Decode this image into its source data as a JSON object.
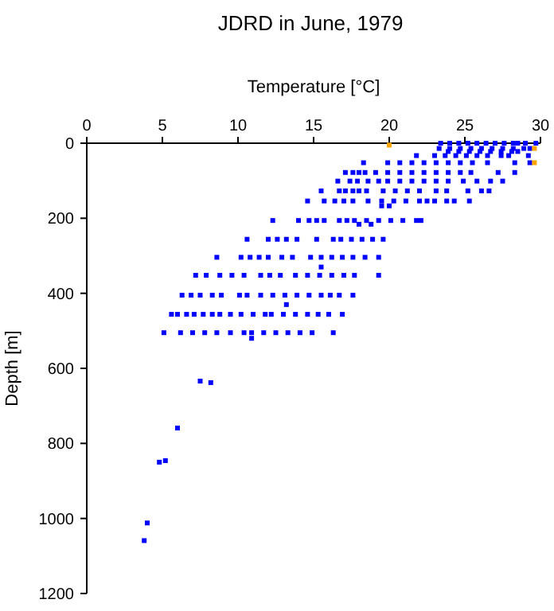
{
  "chart_data": {
    "type": "scatter",
    "title": "JDRD in June, 1979",
    "xlabel": "Temperature [°C]",
    "ylabel": "Depth [m]",
    "xlim": [
      0,
      30
    ],
    "xticks": [
      0,
      5,
      10,
      15,
      20,
      25,
      30
    ],
    "ylim": [
      1200,
      0
    ],
    "yticks": [
      0,
      200,
      400,
      600,
      800,
      1000,
      1200
    ],
    "grid": false,
    "marker": "square",
    "series": [
      {
        "color": "#0000ff",
        "x": [
          23.4,
          24,
          24.6,
          25.2,
          25.8,
          26.4,
          27,
          27.6,
          28.2,
          28.5,
          29.0,
          29.7,
          23.3,
          24,
          24.7,
          25.4,
          26.1,
          26.8,
          27.5,
          28.2,
          28.9,
          29.3,
          23.9,
          24.6,
          25.3,
          26,
          26.7,
          27.4,
          28.1,
          28.5,
          21.8,
          23,
          23.7,
          24.4,
          25.1,
          25.8,
          26.5,
          27.4,
          27.9,
          29.2,
          18.3,
          19.9,
          20.7,
          21.5,
          22.3,
          23.1,
          23.9,
          24.7,
          25.5,
          26.5,
          28.3,
          29.3,
          17.1,
          17.6,
          18.0,
          18.4,
          19.1,
          19.9,
          20.7,
          21.5,
          22.3,
          23.1,
          23.9,
          24.7,
          25.4,
          27.2,
          28.3,
          16.6,
          17.4,
          17.9,
          18.6,
          19.3,
          19.9,
          20.7,
          21.5,
          22.3,
          23.1,
          23.9,
          24.9,
          25.8,
          26.7,
          27.5,
          15.5,
          16.7,
          17.1,
          17.6,
          18.0,
          18.5,
          19.6,
          20.4,
          21.2,
          22.0,
          23.1,
          23.8,
          25.2,
          26.1,
          26.6,
          14.6,
          15.7,
          16.4,
          17.0,
          17.6,
          18.6,
          19.5,
          20.3,
          21.1,
          22.0,
          22.5,
          23.0,
          23.8,
          24.3,
          25.3,
          19.5,
          20.0,
          12.3,
          14.0,
          14.7,
          15.2,
          15.7,
          16.7,
          17.2,
          17.7,
          18.5,
          19.3,
          20.1,
          20.9,
          21.8,
          22.1,
          18.0,
          18.8,
          10.6,
          12.0,
          12.6,
          13.2,
          13.9,
          15.2,
          16.3,
          16.8,
          17.5,
          18.2,
          18.9,
          19.6,
          8.6,
          10.2,
          10.8,
          11.4,
          12.0,
          12.9,
          13.6,
          14.8,
          15.5,
          16.2,
          16.9,
          17.6,
          18.4,
          19.3,
          15.5,
          7.2,
          7.9,
          8.8,
          9.6,
          10.4,
          11.5,
          12.1,
          12.8,
          13.8,
          14.6,
          15.4,
          16.2,
          17.0,
          17.7,
          19.3,
          6.3,
          6.9,
          7.5,
          8.3,
          8.9,
          10.1,
          10.6,
          11.5,
          12.3,
          13.1,
          13.9,
          14.7,
          15.5,
          16.1,
          16.7,
          17.6,
          13.2,
          5.6,
          6.0,
          6.6,
          7.1,
          7.7,
          8.3,
          8.8,
          9.5,
          10.2,
          11.0,
          11.8,
          12.2,
          13.0,
          13.8,
          14.6,
          15.3,
          16.0,
          16.9,
          5.1,
          6.2,
          7.0,
          7.8,
          8.6,
          9.5,
          10.4,
          10.9,
          11.7,
          12.5,
          13.3,
          14.1,
          14.9,
          16.3,
          10.9,
          7.5,
          8.2,
          6.0,
          4.8,
          5.2,
          4.0,
          3.8
        ],
        "values": [
          0,
          0,
          0,
          0,
          0,
          0,
          0,
          0,
          0,
          0,
          0,
          0,
          14,
          14,
          14,
          14,
          14,
          14,
          14,
          14,
          14,
          14,
          22,
          22,
          22,
          22,
          22,
          22,
          22,
          22,
          33,
          33,
          33,
          33,
          33,
          33,
          33,
          33,
          33,
          33,
          52,
          52,
          52,
          52,
          52,
          52,
          52,
          52,
          52,
          52,
          52,
          52,
          78,
          78,
          78,
          78,
          78,
          78,
          78,
          78,
          78,
          78,
          78,
          78,
          78,
          78,
          78,
          101,
          101,
          101,
          101,
          101,
          101,
          101,
          101,
          101,
          101,
          101,
          101,
          101,
          101,
          101,
          127,
          127,
          127,
          127,
          127,
          127,
          127,
          127,
          127,
          127,
          127,
          127,
          127,
          127,
          127,
          154,
          154,
          154,
          154,
          154,
          154,
          154,
          154,
          154,
          154,
          154,
          154,
          154,
          154,
          154,
          167,
          167,
          206,
          206,
          206,
          206,
          206,
          206,
          206,
          206,
          206,
          206,
          206,
          206,
          206,
          206,
          216,
          216,
          256,
          256,
          256,
          256,
          256,
          256,
          256,
          256,
          256,
          256,
          256,
          256,
          304,
          304,
          304,
          304,
          304,
          304,
          304,
          304,
          304,
          304,
          304,
          304,
          304,
          304,
          330,
          352,
          352,
          352,
          352,
          352,
          352,
          352,
          352,
          352,
          352,
          352,
          352,
          352,
          352,
          352,
          405,
          405,
          405,
          405,
          405,
          405,
          405,
          405,
          405,
          405,
          405,
          405,
          405,
          405,
          405,
          405,
          430,
          456,
          456,
          456,
          456,
          456,
          456,
          456,
          456,
          456,
          456,
          456,
          456,
          456,
          456,
          456,
          456,
          456,
          456,
          505,
          505,
          505,
          505,
          505,
          505,
          505,
          505,
          505,
          505,
          505,
          505,
          505,
          505,
          520,
          634,
          638,
          759,
          850,
          846,
          1012,
          1059
        ]
      },
      {
        "color": "#ffa500",
        "x": [
          20,
          29.6,
          29.6
        ],
        "values": [
          5,
          14,
          52
        ]
      }
    ]
  }
}
